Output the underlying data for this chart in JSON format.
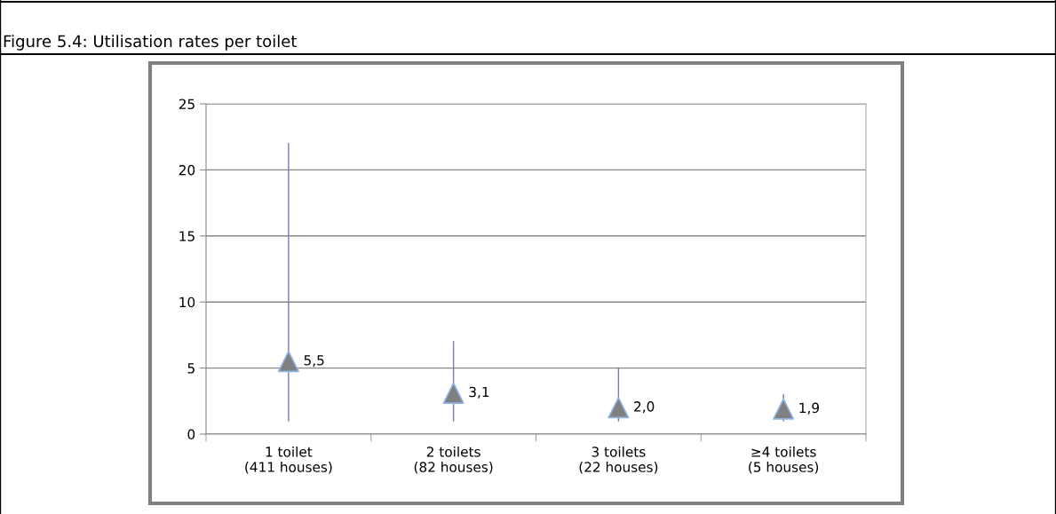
{
  "chart_data": {
    "type": "scatter",
    "title": "Figure 5.4: Utilisation rates per toilet",
    "categories": [
      "1 toilet\n(411 houses)",
      "2 toilets\n(82 houses)",
      "3 toilets\n(22 houses)",
      "≥4 toilets\n(5 houses)"
    ],
    "values": [
      5.5,
      3.1,
      2.0,
      1.9
    ],
    "errors": [
      [
        1,
        22
      ],
      [
        1,
        7
      ],
      [
        1,
        5
      ],
      [
        1,
        3
      ]
    ],
    "value_labels": [
      "5,5",
      "3,1",
      "2,0",
      "1,9"
    ],
    "color": "#808080",
    "marker": "triangle",
    "ylim": [
      0,
      25
    ],
    "yticks": [
      0,
      5,
      10,
      15,
      20,
      25
    ],
    "grid": "y",
    "legend": false
  }
}
